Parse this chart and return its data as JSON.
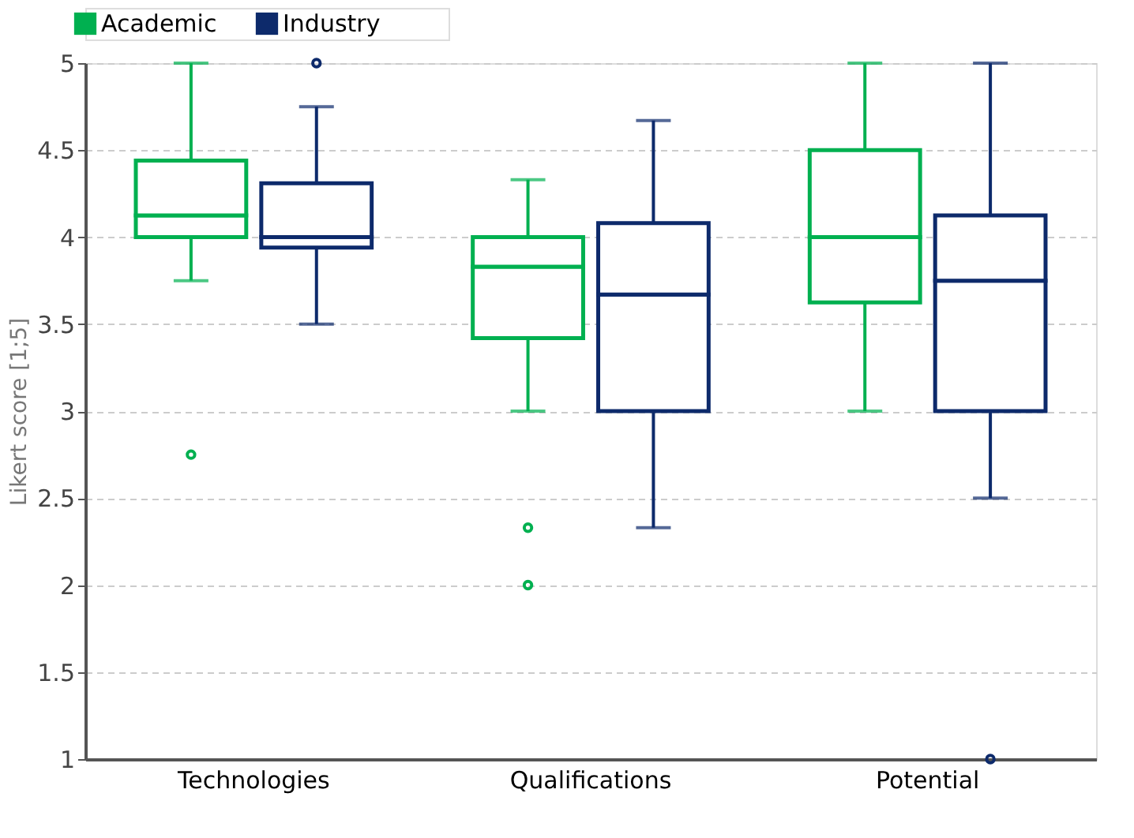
{
  "chart_data": {
    "type": "box",
    "ylabel": "Likert score [1;5]",
    "categories": [
      "Technologies",
      "Qualifications",
      "Potential"
    ],
    "ylim": [
      1,
      5
    ],
    "yticks": [
      1,
      1.5,
      2,
      2.5,
      3,
      3.5,
      4,
      4.5,
      5
    ],
    "grid": "y",
    "legend": "top left",
    "series": [
      {
        "name": "Academic",
        "color": "#00b050",
        "boxes": [
          {
            "low": 3.75,
            "q1": 4.0,
            "median": 4.125,
            "q3": 4.44,
            "high": 5,
            "outliers": [
              2.75
            ]
          },
          {
            "low": 3.0,
            "q1": 3.42,
            "median": 3.83,
            "q3": 4.0,
            "high": 4.33,
            "outliers": [
              2.33,
              2.0
            ]
          },
          {
            "low": 3.0,
            "q1": 3.625,
            "median": 4.0,
            "q3": 4.5,
            "high": 5
          }
        ]
      },
      {
        "name": "Industry",
        "color": "#0d2a6b",
        "boxes": [
          {
            "low": 3.5,
            "q1": 3.94,
            "median": 4.0,
            "q3": 4.31,
            "high": 4.75,
            "outliers": [
              5
            ]
          },
          {
            "low": 2.33,
            "q1": 3.0,
            "median": 3.67,
            "q3": 4.08,
            "high": 4.67
          },
          {
            "low": 2.5,
            "q1": 3.0,
            "median": 3.75,
            "q3": 4.125,
            "high": 5,
            "outliers": [
              1
            ]
          }
        ]
      }
    ]
  }
}
